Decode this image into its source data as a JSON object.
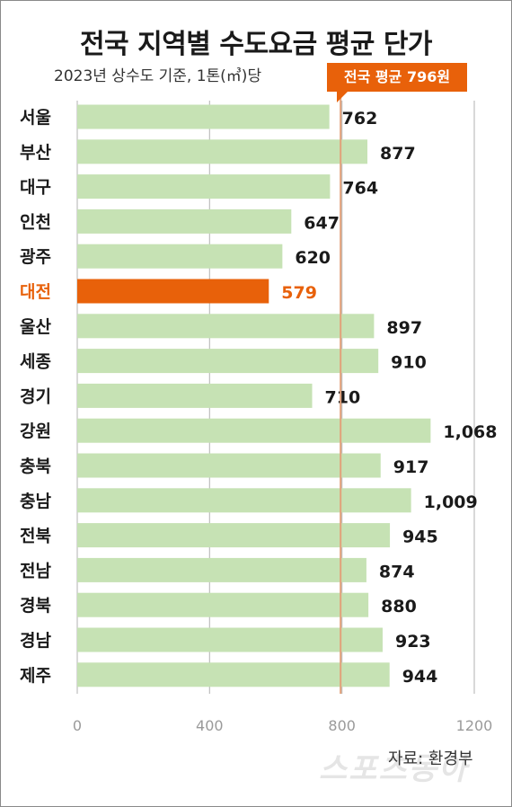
{
  "title": "전국 지역별 수도요금 평균 단가",
  "subtitle": "2023년 상수도 기준, 1톤(㎥)당",
  "source": "자료: 환경부",
  "watermark": "스포츠동아",
  "avg_label": "전국 평균 796원",
  "colors": {
    "bar": "#c6e2b4",
    "highlight": "#e8610a",
    "grid": "#bdbdbd",
    "avg_line": "#e2a17a"
  },
  "chart_data": {
    "type": "bar",
    "orientation": "horizontal",
    "title": "전국 지역별 수도요금 평균 단가",
    "subtitle": "2023년 상수도 기준, 1톤(㎥)당",
    "categories": [
      "서울",
      "부산",
      "대구",
      "인천",
      "광주",
      "대전",
      "울산",
      "세종",
      "경기",
      "강원",
      "충북",
      "충남",
      "전북",
      "전남",
      "경북",
      "경남",
      "제주"
    ],
    "values": [
      762,
      877,
      764,
      647,
      620,
      579,
      897,
      910,
      710,
      1068,
      917,
      1009,
      945,
      874,
      880,
      923,
      944
    ],
    "value_labels": [
      "762",
      "877",
      "764",
      "647",
      "620",
      "579",
      "897",
      "910",
      "710",
      "1,068",
      "917",
      "1,009",
      "945",
      "874",
      "880",
      "923",
      "944"
    ],
    "highlight": "대전",
    "average": 796,
    "xlim": [
      0,
      1200
    ],
    "xticks": [
      0,
      400,
      800,
      1200
    ],
    "xtick_labels": [
      "0",
      "400",
      "800",
      "1200"
    ],
    "grid": true
  }
}
